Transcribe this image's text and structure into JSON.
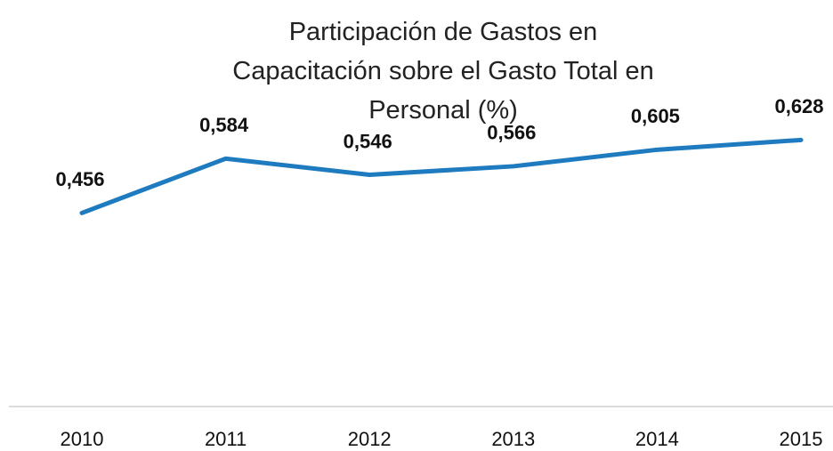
{
  "chart_data": {
    "type": "line",
    "title": "Participación de Gastos en Capacitación sobre el Gasto Total en Personal (%)",
    "categories": [
      "2010",
      "2011",
      "2012",
      "2013",
      "2014",
      "2015"
    ],
    "series": [
      {
        "color": "#1f7bbf",
        "values": [
          0.456,
          0.584,
          0.546,
          0.566,
          0.605,
          0.628
        ],
        "value_labels": [
          "0,456",
          "0,584",
          "0,546",
          "0,566",
          "0,605",
          "0,628"
        ]
      }
    ],
    "ylim": [
      0,
      0.7
    ]
  }
}
